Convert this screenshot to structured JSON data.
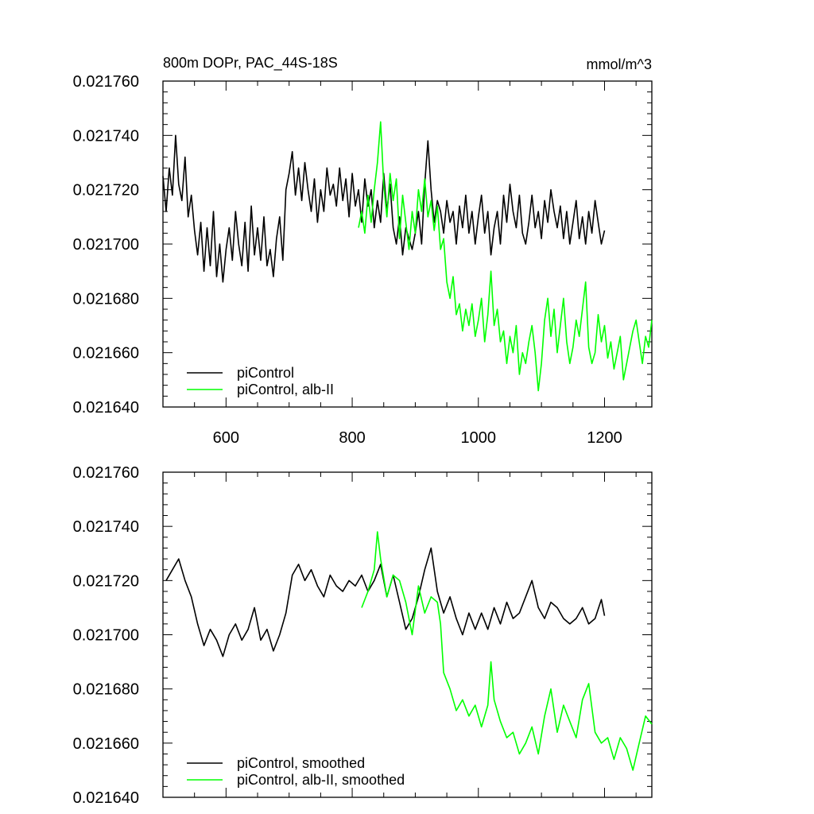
{
  "chart_data": [
    {
      "type": "line",
      "title": "800m DOPr, PAC_44S-18S",
      "units": "mmol/m^3",
      "xlim": [
        500,
        1275
      ],
      "ylim": [
        0.02164,
        0.02176
      ],
      "xticks": [
        600,
        800,
        1000,
        1200
      ],
      "yticks": [
        0.02164,
        0.02166,
        0.02168,
        0.0217,
        0.02172,
        0.02174,
        0.02176
      ],
      "ytick_labels": [
        "0.021640",
        "0.021660",
        "0.021680",
        "0.021700",
        "0.021720",
        "0.021740",
        "0.021760"
      ],
      "xtick_labels": [
        "600",
        "800",
        "1000",
        "1200"
      ],
      "legend_position": "bottom-left",
      "series": [
        {
          "name": "piControl",
          "color": "#000000",
          "x": [
            500,
            505,
            510,
            515,
            520,
            525,
            530,
            535,
            540,
            545,
            550,
            555,
            560,
            565,
            570,
            575,
            580,
            585,
            590,
            595,
            600,
            605,
            610,
            615,
            620,
            625,
            630,
            635,
            640,
            645,
            650,
            655,
            660,
            665,
            670,
            675,
            680,
            685,
            690,
            695,
            700,
            705,
            710,
            715,
            720,
            725,
            730,
            735,
            740,
            745,
            750,
            755,
            760,
            765,
            770,
            775,
            780,
            785,
            790,
            795,
            800,
            805,
            810,
            815,
            820,
            825,
            830,
            835,
            840,
            845,
            850,
            855,
            860,
            865,
            870,
            875,
            880,
            885,
            890,
            895,
            900,
            905,
            910,
            915,
            920,
            925,
            930,
            935,
            940,
            945,
            950,
            955,
            960,
            965,
            970,
            975,
            980,
            985,
            990,
            995,
            1000,
            1005,
            1010,
            1015,
            1020,
            1025,
            1030,
            1035,
            1040,
            1045,
            1050,
            1055,
            1060,
            1065,
            1070,
            1075,
            1080,
            1085,
            1090,
            1095,
            1100,
            1105,
            1110,
            1115,
            1120,
            1125,
            1130,
            1135,
            1140,
            1145,
            1150,
            1155,
            1160,
            1165,
            1170,
            1175,
            1180,
            1185,
            1190,
            1195,
            1200
          ],
          "y": [
            0.021725,
            0.021712,
            0.021728,
            0.021718,
            0.02174,
            0.021722,
            0.021716,
            0.021732,
            0.02171,
            0.021718,
            0.021705,
            0.021696,
            0.021708,
            0.02169,
            0.021706,
            0.021692,
            0.021712,
            0.021688,
            0.0217,
            0.021686,
            0.021698,
            0.021706,
            0.021694,
            0.021712,
            0.0217,
            0.021692,
            0.021708,
            0.02169,
            0.021714,
            0.021696,
            0.021706,
            0.021694,
            0.02171,
            0.021692,
            0.021698,
            0.021688,
            0.021702,
            0.02171,
            0.021694,
            0.02172,
            0.021726,
            0.021734,
            0.021718,
            0.021728,
            0.021716,
            0.02173,
            0.02172,
            0.021712,
            0.021724,
            0.021708,
            0.02172,
            0.021712,
            0.021728,
            0.021718,
            0.021722,
            0.021714,
            0.021728,
            0.021716,
            0.021724,
            0.02171,
            0.021726,
            0.021714,
            0.02172,
            0.021708,
            0.021724,
            0.021714,
            0.02172,
            0.021706,
            0.021716,
            0.021708,
            0.021726,
            0.021712,
            0.021722,
            0.021706,
            0.0217,
            0.02171,
            0.021696,
            0.021706,
            0.021702,
            0.021698,
            0.021704,
            0.021712,
            0.0217,
            0.021722,
            0.021738,
            0.02172,
            0.021708,
            0.021716,
            0.021712,
            0.021704,
            0.021716,
            0.021708,
            0.021712,
            0.0217,
            0.021714,
            0.021706,
            0.021718,
            0.021704,
            0.021712,
            0.0217,
            0.02171,
            0.021718,
            0.021704,
            0.021712,
            0.021696,
            0.021706,
            0.021712,
            0.0217,
            0.021718,
            0.021708,
            0.021722,
            0.021712,
            0.021706,
            0.021718,
            0.021704,
            0.0217,
            0.021708,
            0.021718,
            0.021706,
            0.021712,
            0.021702,
            0.021716,
            0.021708,
            0.02172,
            0.021712,
            0.021706,
            0.021714,
            0.021702,
            0.021712,
            0.0217,
            0.021708,
            0.021716,
            0.021702,
            0.02171,
            0.0217,
            0.021712,
            0.021704,
            0.021716,
            0.021708,
            0.0217,
            0.021705
          ]
        },
        {
          "name": "piControl, alb-II",
          "color": "#00ff00",
          "x": [
            810,
            815,
            820,
            825,
            830,
            835,
            840,
            845,
            850,
            855,
            860,
            865,
            870,
            875,
            880,
            885,
            890,
            895,
            900,
            905,
            910,
            915,
            920,
            925,
            930,
            935,
            940,
            945,
            950,
            955,
            960,
            965,
            970,
            975,
            980,
            985,
            990,
            995,
            1000,
            1005,
            1010,
            1015,
            1020,
            1025,
            1030,
            1035,
            1040,
            1045,
            1050,
            1055,
            1060,
            1065,
            1070,
            1075,
            1080,
            1085,
            1090,
            1095,
            1100,
            1105,
            1110,
            1115,
            1120,
            1125,
            1130,
            1135,
            1140,
            1145,
            1150,
            1155,
            1160,
            1165,
            1170,
            1175,
            1180,
            1185,
            1190,
            1195,
            1200,
            1205,
            1210,
            1215,
            1220,
            1225,
            1230,
            1235,
            1240,
            1245,
            1250,
            1255,
            1260,
            1265,
            1270,
            1275
          ],
          "y": [
            0.021706,
            0.021712,
            0.021704,
            0.021718,
            0.021708,
            0.02172,
            0.02173,
            0.021745,
            0.021722,
            0.02171,
            0.021726,
            0.021716,
            0.021724,
            0.021702,
            0.021718,
            0.021708,
            0.021698,
            0.021712,
            0.021704,
            0.02172,
            0.021712,
            0.021724,
            0.02171,
            0.021716,
            0.021705,
            0.021714,
            0.021698,
            0.021702,
            0.021686,
            0.02168,
            0.021688,
            0.021674,
            0.021678,
            0.021668,
            0.021676,
            0.02167,
            0.021678,
            0.021666,
            0.021672,
            0.02168,
            0.021664,
            0.021674,
            0.02169,
            0.02167,
            0.021676,
            0.021664,
            0.021668,
            0.021656,
            0.021666,
            0.02166,
            0.02167,
            0.021652,
            0.02166,
            0.021656,
            0.021664,
            0.02167,
            0.02166,
            0.021646,
            0.021656,
            0.021672,
            0.02168,
            0.021666,
            0.021676,
            0.02166,
            0.02167,
            0.02168,
            0.021664,
            0.021656,
            0.021662,
            0.021672,
            0.021666,
            0.021676,
            0.021686,
            0.021662,
            0.021656,
            0.02166,
            0.021674,
            0.021664,
            0.02167,
            0.021658,
            0.021664,
            0.021654,
            0.02166,
            0.021666,
            0.02165,
            0.021656,
            0.021662,
            0.021668,
            0.021672,
            0.021664,
            0.021656,
            0.021666,
            0.021662,
            0.021672
          ]
        }
      ]
    },
    {
      "type": "line",
      "title": "",
      "xlim": [
        500,
        1275
      ],
      "ylim": [
        0.02164,
        0.02176
      ],
      "xticks": [
        600,
        800,
        1000,
        1200
      ],
      "yticks": [
        0.02164,
        0.02166,
        0.02168,
        0.0217,
        0.02172,
        0.02174,
        0.02176
      ],
      "ytick_labels": [
        "0.021640",
        "0.021660",
        "0.021680",
        "0.021700",
        "0.021720",
        "0.021740",
        "0.021760"
      ],
      "legend_position": "bottom-left",
      "series": [
        {
          "name": "piControl, smoothed",
          "color": "#000000",
          "x": [
            505,
            515,
            525,
            535,
            545,
            555,
            565,
            575,
            585,
            595,
            605,
            615,
            625,
            635,
            645,
            655,
            665,
            675,
            685,
            695,
            705,
            715,
            725,
            735,
            745,
            755,
            765,
            775,
            785,
            795,
            805,
            815,
            825,
            835,
            845,
            855,
            865,
            875,
            885,
            895,
            905,
            915,
            925,
            935,
            945,
            955,
            965,
            975,
            985,
            995,
            1005,
            1015,
            1025,
            1035,
            1045,
            1055,
            1065,
            1075,
            1085,
            1095,
            1105,
            1115,
            1125,
            1135,
            1145,
            1155,
            1165,
            1175,
            1185,
            1195,
            1200
          ],
          "y": [
            0.02172,
            0.021724,
            0.021728,
            0.02172,
            0.021714,
            0.021704,
            0.021696,
            0.021702,
            0.021698,
            0.021692,
            0.0217,
            0.021704,
            0.021698,
            0.021702,
            0.02171,
            0.021698,
            0.021702,
            0.021694,
            0.0217,
            0.021708,
            0.021722,
            0.021726,
            0.02172,
            0.021724,
            0.021718,
            0.021714,
            0.021722,
            0.021718,
            0.021716,
            0.02172,
            0.021718,
            0.021722,
            0.021716,
            0.02172,
            0.021726,
            0.021714,
            0.021722,
            0.021712,
            0.021702,
            0.021706,
            0.021714,
            0.021724,
            0.021732,
            0.021716,
            0.021708,
            0.021714,
            0.021706,
            0.0217,
            0.021708,
            0.021702,
            0.021708,
            0.021702,
            0.02171,
            0.021704,
            0.021712,
            0.021706,
            0.021708,
            0.021714,
            0.02172,
            0.02171,
            0.021706,
            0.021712,
            0.02171,
            0.021706,
            0.021704,
            0.021706,
            0.02171,
            0.021704,
            0.021706,
            0.021713,
            0.021707
          ]
        },
        {
          "name": "piControl, alb-II, smoothed",
          "color": "#00ff00",
          "x": [
            815,
            825,
            835,
            840,
            845,
            855,
            865,
            875,
            885,
            895,
            905,
            915,
            925,
            935,
            940,
            945,
            955,
            965,
            975,
            985,
            995,
            1005,
            1015,
            1020,
            1025,
            1035,
            1045,
            1055,
            1065,
            1075,
            1085,
            1095,
            1105,
            1115,
            1125,
            1135,
            1145,
            1155,
            1165,
            1175,
            1185,
            1195,
            1205,
            1215,
            1225,
            1235,
            1245,
            1255,
            1265,
            1275
          ],
          "y": [
            0.02171,
            0.021716,
            0.021724,
            0.021738,
            0.021728,
            0.021714,
            0.021722,
            0.02172,
            0.021712,
            0.0217,
            0.021718,
            0.021708,
            0.021714,
            0.021712,
            0.021704,
            0.021686,
            0.02168,
            0.021672,
            0.021676,
            0.02167,
            0.021674,
            0.021666,
            0.021674,
            0.02169,
            0.021676,
            0.021668,
            0.021662,
            0.021664,
            0.021656,
            0.02166,
            0.021666,
            0.021656,
            0.02167,
            0.02168,
            0.021664,
            0.021674,
            0.021668,
            0.021662,
            0.021676,
            0.021682,
            0.021664,
            0.02166,
            0.021662,
            0.021654,
            0.021662,
            0.021658,
            0.02165,
            0.02166,
            0.02167,
            0.021667
          ]
        }
      ]
    }
  ]
}
